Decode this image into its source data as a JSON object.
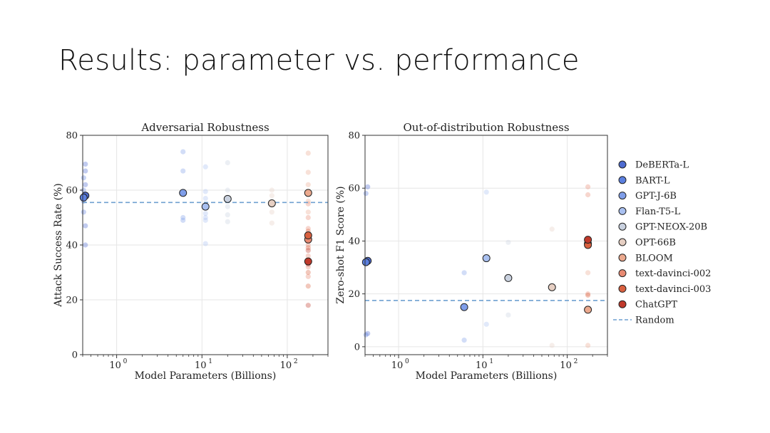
{
  "slide": {
    "title": "Results: parameter vs. performance"
  },
  "legend": {
    "entries": [
      {
        "name": "DeBERTa-L",
        "color": "#4e6bd0"
      },
      {
        "name": "BART-L",
        "color": "#5b7fdf"
      },
      {
        "name": "GPT-J-6B",
        "color": "#7f9ee9"
      },
      {
        "name": "Flan-T5-L",
        "color": "#a9c0f0"
      },
      {
        "name": "GPT-NEOX-20B",
        "color": "#c9d1df"
      },
      {
        "name": "OPT-66B",
        "color": "#e6cfc3"
      },
      {
        "name": "BLOOM",
        "color": "#eba98e"
      },
      {
        "name": "text-davinci-002",
        "color": "#e88a72"
      },
      {
        "name": "text-davinci-003",
        "color": "#d9603f"
      },
      {
        "name": "ChatGPT",
        "color": "#c0392b"
      }
    ],
    "random_label": "Random",
    "random_color": "#6fa0d0"
  },
  "chart_data": [
    {
      "type": "scatter",
      "title": "Adversarial Robustness",
      "xlabel": "Model Parameters (Billions)",
      "ylabel": "Attack Success Rate (%)",
      "xscale": "log",
      "xlim": [
        0.4,
        300
      ],
      "ylim": [
        0,
        80
      ],
      "xticks": [
        {
          "base": "10",
          "exp": "0",
          "value": 1
        },
        {
          "base": "10",
          "exp": "1",
          "value": 10
        },
        {
          "base": "10",
          "exp": "2",
          "value": 100
        }
      ],
      "yticks": [
        0,
        20,
        40,
        60,
        80
      ],
      "random_baseline": 55.5,
      "grid": true,
      "highlight_points": [
        {
          "model": "DeBERTa-L",
          "x": 0.43,
          "y": 58.0
        },
        {
          "model": "BART-L",
          "x": 0.41,
          "y": 57.3
        },
        {
          "model": "GPT-J-6B",
          "x": 6.0,
          "y": 59.0
        },
        {
          "model": "Flan-T5-L",
          "x": 11.0,
          "y": 54.0
        },
        {
          "model": "GPT-NEOX-20B",
          "x": 20.0,
          "y": 56.8
        },
        {
          "model": "OPT-66B",
          "x": 66.0,
          "y": 55.2
        },
        {
          "model": "BLOOM",
          "x": 176.0,
          "y": 59.0
        },
        {
          "model": "text-davinci-002",
          "x": 176.0,
          "y": 42.0
        },
        {
          "model": "text-davinci-003",
          "x": 176.0,
          "y": 43.5
        },
        {
          "model": "ChatGPT",
          "x": 176.0,
          "y": 34.0
        }
      ],
      "faint_points": [
        {
          "model": "DeBERTa-L",
          "x": 0.43,
          "y": [
            69.5,
            67.0,
            62.0,
            58.5,
            47.0,
            40.0
          ]
        },
        {
          "model": "BART-L",
          "x": 0.41,
          "y": [
            64.5,
            60.0,
            56.0,
            52.0
          ]
        },
        {
          "model": "GPT-J-6B",
          "x": 6.0,
          "y": [
            74.0,
            67.0,
            50.0,
            49.0
          ]
        },
        {
          "model": "Flan-T5-L",
          "x": 11.0,
          "y": [
            68.5,
            59.5,
            57.0,
            51.5,
            50.0,
            49.0,
            40.5
          ]
        },
        {
          "model": "GPT-NEOX-20B",
          "x": 20.0,
          "y": [
            70.0,
            60.0,
            54.0,
            51.0,
            48.5
          ]
        },
        {
          "model": "OPT-66B",
          "x": 66.0,
          "y": [
            60.0,
            58.0,
            54.5,
            52.0,
            48.0
          ]
        },
        {
          "model": "BLOOM",
          "x": 176.0,
          "y": [
            73.5,
            66.5,
            62.0,
            56.0,
            52.0
          ]
        },
        {
          "model": "text-davinci-002",
          "x": 176.0,
          "y": [
            55.0,
            50.0,
            46.0,
            40.0,
            36.0,
            32.0,
            28.5
          ]
        },
        {
          "model": "text-davinci-003",
          "x": 176.0,
          "y": [
            45.0,
            39.0,
            30.0,
            25.0
          ]
        },
        {
          "model": "ChatGPT",
          "x": 176.0,
          "y": [
            38.0,
            33.0,
            18.0
          ]
        }
      ]
    },
    {
      "type": "scatter",
      "title": "Out-of-distribution Robustness",
      "xlabel": "Model Parameters (Billions)",
      "ylabel": "Zero-shot F1 Score (%)",
      "xscale": "log",
      "xlim": [
        0.4,
        300
      ],
      "ylim": [
        -3,
        80
      ],
      "xticks": [
        {
          "base": "10",
          "exp": "0",
          "value": 1
        },
        {
          "base": "10",
          "exp": "1",
          "value": 10
        },
        {
          "base": "10",
          "exp": "2",
          "value": 100
        }
      ],
      "yticks": [
        0,
        20,
        40,
        60,
        80
      ],
      "random_baseline": 17.5,
      "grid": true,
      "highlight_points": [
        {
          "model": "DeBERTa-L",
          "x": 0.43,
          "y": 32.5
        },
        {
          "model": "BART-L",
          "x": 0.41,
          "y": 32.0
        },
        {
          "model": "GPT-J-6B",
          "x": 6.0,
          "y": 15.0
        },
        {
          "model": "Flan-T5-L",
          "x": 11.0,
          "y": 33.5
        },
        {
          "model": "GPT-NEOX-20B",
          "x": 20.0,
          "y": 26.0
        },
        {
          "model": "OPT-66B",
          "x": 66.0,
          "y": 22.5
        },
        {
          "model": "BLOOM",
          "x": 176.0,
          "y": 14.0
        },
        {
          "model": "text-davinci-002",
          "x": 176.0,
          "y": 39.0
        },
        {
          "model": "text-davinci-003",
          "x": 176.0,
          "y": 38.5
        },
        {
          "model": "ChatGPT",
          "x": 176.0,
          "y": 40.5
        }
      ],
      "faint_points": [
        {
          "model": "DeBERTa-L",
          "x": 0.43,
          "y": [
            60.5,
            5.0
          ]
        },
        {
          "model": "BART-L",
          "x": 0.41,
          "y": [
            58.0,
            4.5
          ]
        },
        {
          "model": "GPT-J-6B",
          "x": 6.0,
          "y": [
            28.0,
            2.5
          ]
        },
        {
          "model": "Flan-T5-L",
          "x": 11.0,
          "y": [
            58.5,
            8.5
          ]
        },
        {
          "model": "GPT-NEOX-20B",
          "x": 20.0,
          "y": [
            39.5,
            12.0
          ]
        },
        {
          "model": "OPT-66B",
          "x": 66.0,
          "y": [
            44.5,
            0.5
          ]
        },
        {
          "model": "BLOOM",
          "x": 176.0,
          "y": [
            28.0,
            0.5
          ]
        },
        {
          "model": "text-davinci-002",
          "x": 176.0,
          "y": [
            60.5,
            57.5,
            20.0
          ]
        },
        {
          "model": "text-davinci-003",
          "x": 176.0,
          "y": [
            19.5
          ]
        },
        {
          "model": "ChatGPT",
          "x": 176.0,
          "y": [
            39.5
          ]
        }
      ]
    }
  ]
}
